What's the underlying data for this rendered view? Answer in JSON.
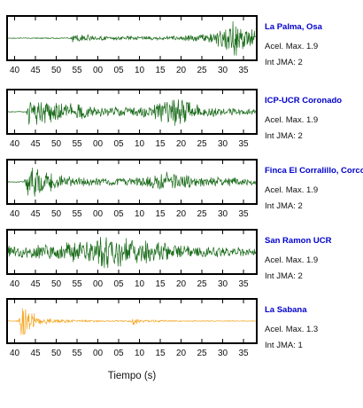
{
  "chart_data": {
    "type": "line",
    "xlabel": "Tiempo (s)",
    "xlim": [
      38.5,
      37.5
    ],
    "x_tick_labels": [
      "40",
      "45",
      "50",
      "55",
      "00",
      "05",
      "10",
      "15",
      "20",
      "25",
      "30",
      "35"
    ],
    "panels": [
      {
        "station": "La Palma, Osa",
        "accel_label": "Acel. Max. 1.9",
        "jma_label": "Int JMA: 2",
        "color": "#1a6b1a",
        "onset_tick_index": 2.75,
        "peak_tick_index": 10.5,
        "envelope": [
          [
            0,
            0.02
          ],
          [
            2.7,
            0.03
          ],
          [
            2.8,
            0.25
          ],
          [
            4,
            0.12
          ],
          [
            6,
            0.1
          ],
          [
            8,
            0.12
          ],
          [
            9,
            0.2
          ],
          [
            9.8,
            0.45
          ],
          [
            10.5,
            1.0
          ],
          [
            11.2,
            0.6
          ],
          [
            11.6,
            0.5
          ]
        ]
      },
      {
        "station": "ICP-UCR Coronado",
        "accel_label": "Acel. Max. 1.9",
        "jma_label": "Int JMA: 2",
        "color": "#1a6b1a",
        "onset_tick_index": 0.55,
        "peak_tick_index": 7.6,
        "envelope": [
          [
            0,
            0.02
          ],
          [
            0.55,
            0.03
          ],
          [
            0.7,
            0.75
          ],
          [
            1.5,
            0.65
          ],
          [
            2.5,
            0.5
          ],
          [
            4,
            0.3
          ],
          [
            5.5,
            0.25
          ],
          [
            6.5,
            0.3
          ],
          [
            7.2,
            0.75
          ],
          [
            7.6,
            1.0
          ],
          [
            8,
            0.7
          ],
          [
            9,
            0.3
          ],
          [
            10.5,
            0.2
          ],
          [
            11.6,
            0.15
          ]
        ]
      },
      {
        "station": "Finca El Corralillo, Corcovado",
        "accel_label": "Acel. Max. 1.9",
        "jma_label": "Int JMA: 2",
        "color": "#1a6b1a",
        "onset_tick_index": 0.45,
        "peak_tick_index": 0.95,
        "envelope": [
          [
            0,
            0.02
          ],
          [
            0.45,
            0.03
          ],
          [
            0.6,
            0.85
          ],
          [
            0.95,
            1.0
          ],
          [
            1.5,
            0.55
          ],
          [
            2.5,
            0.3
          ],
          [
            4,
            0.2
          ],
          [
            5.5,
            0.2
          ],
          [
            6.5,
            0.3
          ],
          [
            7.3,
            0.6
          ],
          [
            7.8,
            0.5
          ],
          [
            9,
            0.3
          ],
          [
            10.5,
            0.25
          ],
          [
            11.6,
            0.2
          ]
        ]
      },
      {
        "station": "San Ramon UCR",
        "accel_label": "Acel. Max. 1.9",
        "jma_label": "Int JMA: 2",
        "color": "#1a6b1a",
        "onset_tick_index": 0,
        "peak_tick_index": 4.6,
        "envelope": [
          [
            0,
            0.35
          ],
          [
            1,
            0.4
          ],
          [
            2,
            0.45
          ],
          [
            3,
            0.55
          ],
          [
            4,
            0.8
          ],
          [
            4.6,
            1.0
          ],
          [
            5.2,
            0.85
          ],
          [
            6,
            0.7
          ],
          [
            7,
            0.6
          ],
          [
            8,
            0.4
          ],
          [
            9,
            0.3
          ],
          [
            10.5,
            0.25
          ],
          [
            11.6,
            0.2
          ]
        ]
      },
      {
        "station": "La Sabana",
        "accel_label": "Acel. Max. 1.3",
        "jma_label": "Int JMA: 1",
        "color": "#f5a623",
        "onset_tick_index": 0.2,
        "peak_tick_index": 0.35,
        "envelope": [
          [
            0,
            0.02
          ],
          [
            0.2,
            0.05
          ],
          [
            0.3,
            1.0
          ],
          [
            0.7,
            0.5
          ],
          [
            1.5,
            0.15
          ],
          [
            3,
            0.06
          ],
          [
            5,
            0.04
          ],
          [
            5.6,
            0.05
          ],
          [
            5.75,
            0.3
          ],
          [
            6,
            0.08
          ],
          [
            8,
            0.03
          ],
          [
            11.6,
            0.02
          ]
        ]
      }
    ]
  }
}
